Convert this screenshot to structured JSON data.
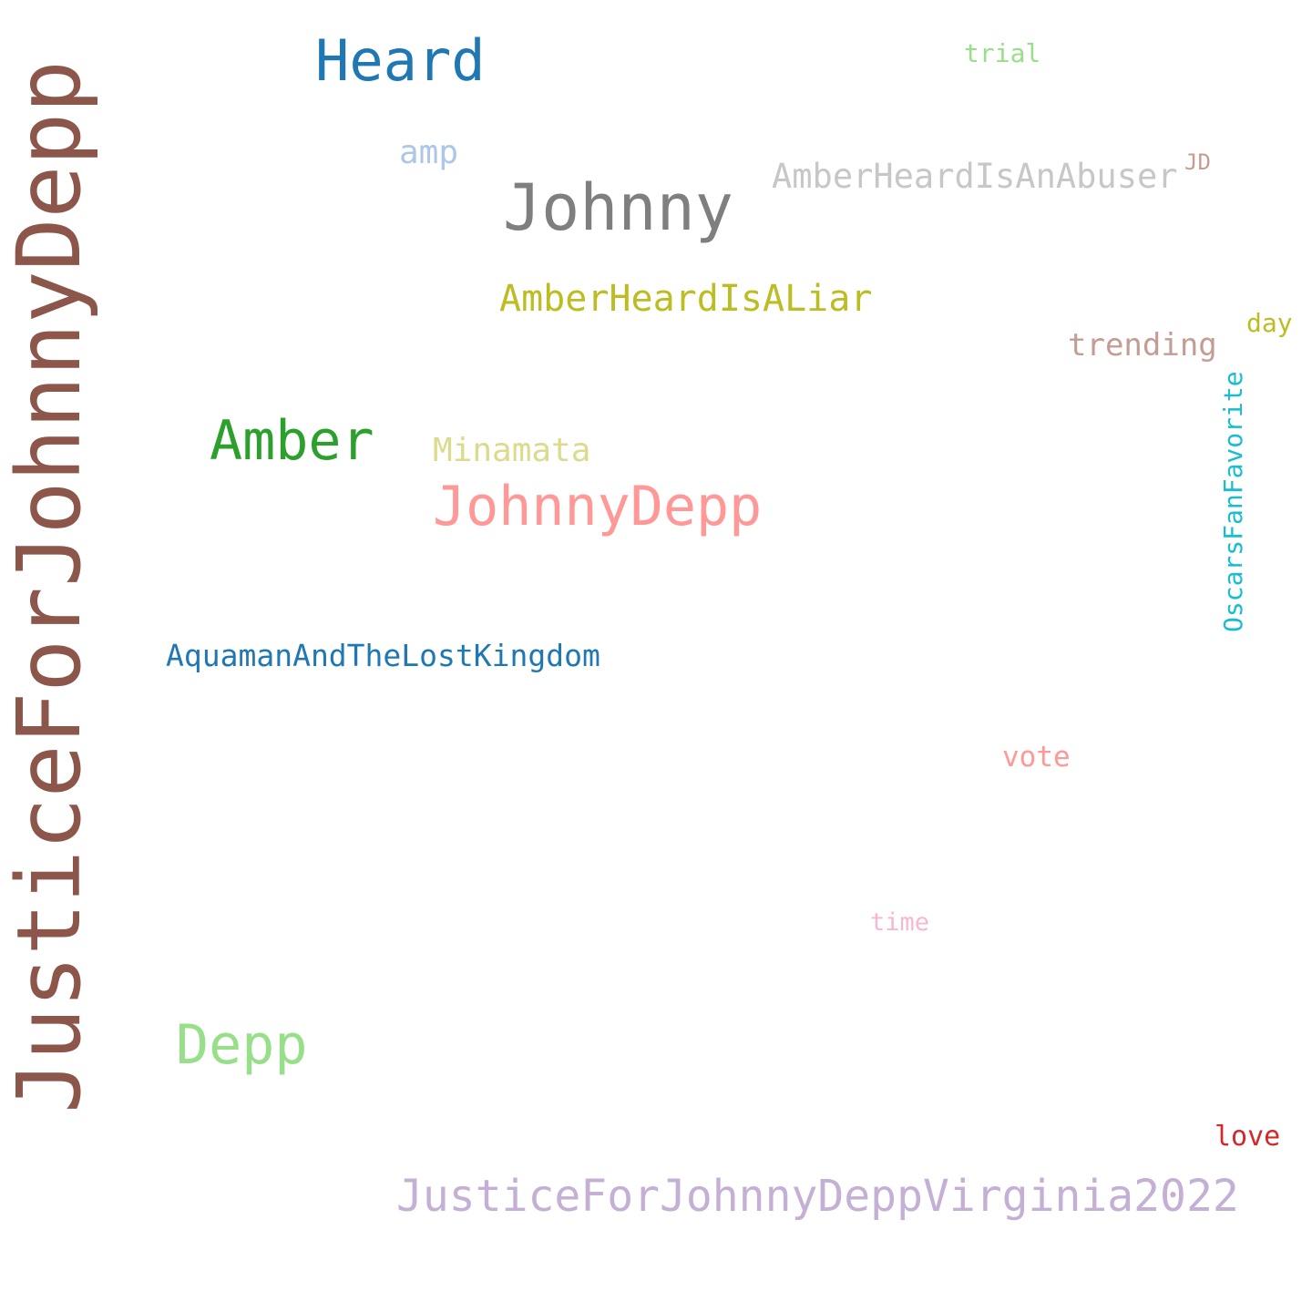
{
  "words": [
    {
      "key": "justiceforjohnnydepp",
      "text": "JusticeForJohnnyDepp",
      "color": "#8c564b"
    },
    {
      "key": "heard",
      "text": "Heard",
      "color": "#1f77b4"
    },
    {
      "key": "trial",
      "text": "trial",
      "color": "#98df8a"
    },
    {
      "key": "amp",
      "text": "amp",
      "color": "#aec7e8"
    },
    {
      "key": "johnny",
      "text": "Johnny",
      "color": "#7f7f7f"
    },
    {
      "key": "amberheardisanabuser",
      "text": "AmberHeardIsAnAbuser",
      "color": "#c7c7c7"
    },
    {
      "key": "jd",
      "text": "JD",
      "color": "#c49c94"
    },
    {
      "key": "amberheardisaliar",
      "text": "AmberHeardIsALiar",
      "color": "#bcbd22"
    },
    {
      "key": "day",
      "text": "day",
      "color": "#bcbd22"
    },
    {
      "key": "trending",
      "text": "trending",
      "color": "#c49c94"
    },
    {
      "key": "oscarsfanfavorite",
      "text": "OscarsFanFavorite",
      "color": "#17becf"
    },
    {
      "key": "amber",
      "text": "Amber",
      "color": "#2ca02c"
    },
    {
      "key": "minamata",
      "text": "Minamata",
      "color": "#dbdb8d"
    },
    {
      "key": "johnnydepp",
      "text": "JohnnyDepp",
      "color": "#ff9896"
    },
    {
      "key": "aquaman",
      "text": "AquamanAndTheLostKingdom",
      "color": "#1f77b4"
    },
    {
      "key": "vote",
      "text": "vote",
      "color": "#ff9896"
    },
    {
      "key": "time",
      "text": "time",
      "color": "#f7b6d2"
    },
    {
      "key": "depp",
      "text": "Depp",
      "color": "#98df8a"
    },
    {
      "key": "love",
      "text": "love",
      "color": "#d62728"
    },
    {
      "key": "virginia",
      "text": "JusticeForJohnnyDeppVirginia2022",
      "color": "#c5b0d5"
    }
  ]
}
